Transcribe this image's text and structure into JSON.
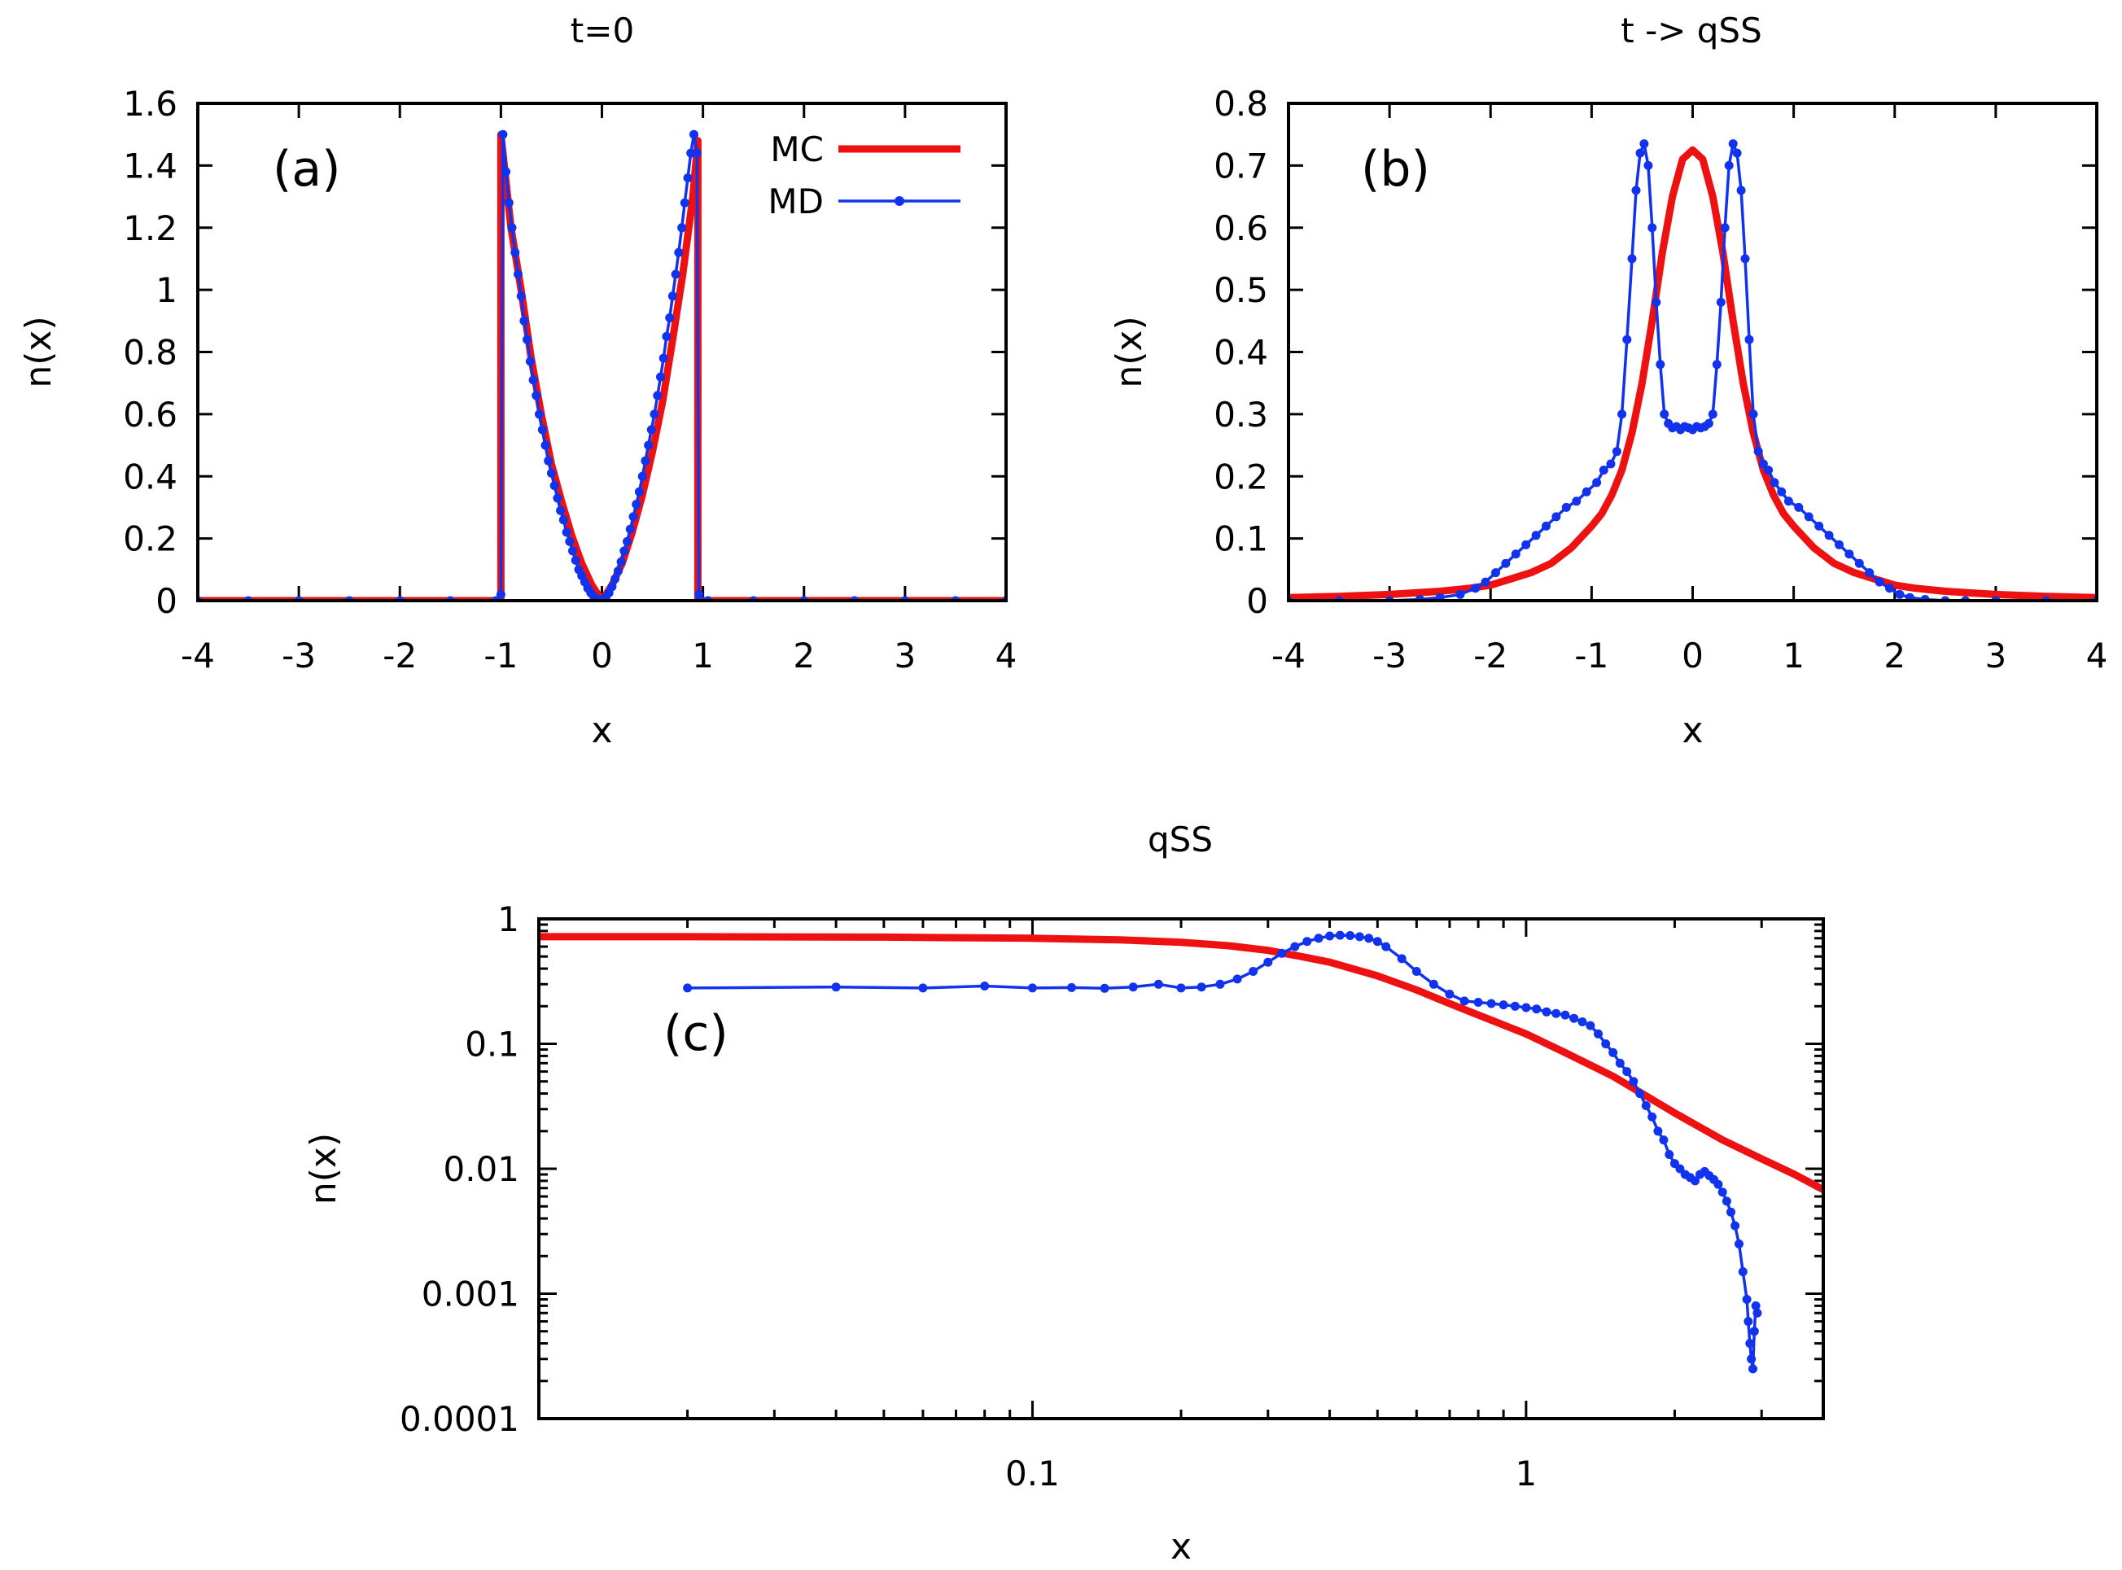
{
  "colors": {
    "mc": "#ee1111",
    "md": "#1133ee",
    "axis": "#000000"
  },
  "chart_data": [
    {
      "type": "line",
      "title": "t=0",
      "panel_label": "(a)",
      "xlabel": "x",
      "ylabel": "n(x)",
      "xscale": "linear",
      "yscale": "linear",
      "xlim": [
        -4,
        4
      ],
      "ylim": [
        0,
        1.6
      ],
      "xticks": [
        -4,
        -3,
        -2,
        -1,
        0,
        1,
        2,
        3,
        4
      ],
      "xtick_labels": [
        "-4",
        "-3",
        "-2",
        "-1",
        "0",
        "1",
        "2",
        "3",
        "4"
      ],
      "yticks": [
        0,
        0.2,
        0.4,
        0.6,
        0.8,
        1,
        1.2,
        1.4,
        1.6
      ],
      "ytick_labels": [
        "0",
        "0.2",
        "0.4",
        "0.6",
        "0.8",
        "1",
        "1.2",
        "1.4",
        "1.6"
      ],
      "legend": {
        "placement": "top-right",
        "entries": [
          "MC",
          "MD"
        ]
      },
      "series": [
        {
          "name": "MC",
          "style": "thick-line",
          "x": [
            -4,
            -1.0,
            -1.0,
            -0.9,
            -0.8,
            -0.7,
            -0.6,
            -0.5,
            -0.4,
            -0.3,
            -0.2,
            -0.1,
            0,
            0.1,
            0.2,
            0.3,
            0.4,
            0.5,
            0.6,
            0.7,
            0.8,
            0.9,
            0.95,
            0.95,
            4
          ],
          "y": [
            0,
            0,
            1.5,
            1.2,
            1.0,
            0.78,
            0.6,
            0.44,
            0.32,
            0.21,
            0.12,
            0.05,
            0.0,
            0.05,
            0.12,
            0.22,
            0.34,
            0.48,
            0.64,
            0.84,
            1.05,
            1.3,
            1.48,
            0,
            0
          ]
        },
        {
          "name": "MD",
          "style": "line-points",
          "x": [
            -4,
            -3.5,
            -3,
            -2.5,
            -2,
            -1.5,
            -1.05,
            -1.0,
            -0.98,
            -0.95,
            -0.92,
            -0.89,
            -0.86,
            -0.83,
            -0.8,
            -0.77,
            -0.74,
            -0.71,
            -0.68,
            -0.65,
            -0.62,
            -0.59,
            -0.56,
            -0.53,
            -0.5,
            -0.47,
            -0.44,
            -0.41,
            -0.38,
            -0.35,
            -0.32,
            -0.29,
            -0.26,
            -0.23,
            -0.2,
            -0.17,
            -0.14,
            -0.11,
            -0.08,
            -0.05,
            -0.02,
            0.01,
            0.04,
            0.07,
            0.1,
            0.13,
            0.16,
            0.19,
            0.22,
            0.25,
            0.28,
            0.31,
            0.34,
            0.37,
            0.4,
            0.43,
            0.46,
            0.49,
            0.52,
            0.55,
            0.58,
            0.61,
            0.64,
            0.67,
            0.7,
            0.73,
            0.76,
            0.79,
            0.82,
            0.85,
            0.88,
            0.91,
            0.94,
            0.96,
            0.97,
            1.05,
            1.5,
            2,
            2.5,
            3,
            3.5,
            4
          ],
          "y": [
            0,
            0,
            0,
            0,
            0,
            0,
            0,
            0.02,
            1.5,
            1.38,
            1.28,
            1.2,
            1.12,
            1.05,
            0.98,
            0.9,
            0.84,
            0.77,
            0.71,
            0.66,
            0.6,
            0.55,
            0.5,
            0.45,
            0.41,
            0.37,
            0.33,
            0.29,
            0.26,
            0.22,
            0.19,
            0.16,
            0.13,
            0.1,
            0.08,
            0.06,
            0.04,
            0.025,
            0.012,
            0.005,
            0.002,
            0.004,
            0.012,
            0.025,
            0.045,
            0.07,
            0.095,
            0.125,
            0.16,
            0.19,
            0.23,
            0.27,
            0.31,
            0.35,
            0.4,
            0.45,
            0.5,
            0.55,
            0.6,
            0.66,
            0.72,
            0.78,
            0.85,
            0.91,
            0.98,
            1.05,
            1.12,
            1.2,
            1.28,
            1.36,
            1.44,
            1.5,
            1.44,
            0.02,
            0,
            0,
            0,
            0,
            0,
            0,
            0,
            0
          ]
        }
      ]
    },
    {
      "type": "line",
      "title": "t -> qSS",
      "panel_label": "(b)",
      "xlabel": "x",
      "ylabel": "n(x)",
      "xscale": "linear",
      "yscale": "linear",
      "xlim": [
        -4,
        4
      ],
      "ylim": [
        0,
        0.8
      ],
      "xticks": [
        -4,
        -3,
        -2,
        -1,
        0,
        1,
        2,
        3,
        4
      ],
      "xtick_labels": [
        "-4",
        "-3",
        "-2",
        "-1",
        "0",
        "1",
        "2",
        "3",
        "4"
      ],
      "yticks": [
        0,
        0.1,
        0.2,
        0.3,
        0.4,
        0.5,
        0.6,
        0.7,
        0.8
      ],
      "ytick_labels": [
        "0",
        "0.1",
        "0.2",
        "0.3",
        "0.4",
        "0.5",
        "0.6",
        "0.7",
        "0.8"
      ],
      "series": [
        {
          "name": "MC",
          "style": "thick-line",
          "x": [
            -4,
            -3.5,
            -3,
            -2.5,
            -2.2,
            -2,
            -1.8,
            -1.6,
            -1.4,
            -1.2,
            -1,
            -0.9,
            -0.8,
            -0.7,
            -0.6,
            -0.5,
            -0.4,
            -0.3,
            -0.2,
            -0.1,
            0,
            0.1,
            0.2,
            0.3,
            0.4,
            0.5,
            0.6,
            0.7,
            0.8,
            0.9,
            1,
            1.2,
            1.4,
            1.6,
            1.8,
            2,
            2.2,
            2.5,
            3,
            3.5,
            4
          ],
          "y": [
            0.005,
            0.007,
            0.01,
            0.015,
            0.02,
            0.025,
            0.035,
            0.045,
            0.06,
            0.085,
            0.12,
            0.14,
            0.17,
            0.21,
            0.27,
            0.35,
            0.45,
            0.56,
            0.65,
            0.71,
            0.725,
            0.71,
            0.65,
            0.56,
            0.45,
            0.35,
            0.27,
            0.21,
            0.17,
            0.14,
            0.12,
            0.085,
            0.06,
            0.045,
            0.035,
            0.025,
            0.02,
            0.015,
            0.01,
            0.007,
            0.005
          ]
        },
        {
          "name": "MD",
          "style": "line-points",
          "x": [
            -4,
            -3.5,
            -3,
            -2.7,
            -2.5,
            -2.3,
            -2.15,
            -2.05,
            -1.95,
            -1.85,
            -1.75,
            -1.65,
            -1.55,
            -1.45,
            -1.35,
            -1.25,
            -1.15,
            -1.05,
            -0.95,
            -0.88,
            -0.81,
            -0.75,
            -0.7,
            -0.65,
            -0.6,
            -0.56,
            -0.52,
            -0.48,
            -0.44,
            -0.4,
            -0.36,
            -0.32,
            -0.28,
            -0.24,
            -0.2,
            -0.16,
            -0.12,
            -0.08,
            -0.04,
            0,
            0.04,
            0.08,
            0.12,
            0.16,
            0.2,
            0.24,
            0.28,
            0.32,
            0.36,
            0.4,
            0.44,
            0.48,
            0.52,
            0.56,
            0.6,
            0.65,
            0.7,
            0.75,
            0.81,
            0.88,
            0.95,
            1.05,
            1.15,
            1.25,
            1.35,
            1.45,
            1.55,
            1.65,
            1.75,
            1.85,
            1.95,
            2.05,
            2.15,
            2.3,
            2.5,
            2.7,
            3,
            3.5,
            4
          ],
          "y": [
            0,
            0,
            0,
            0.002,
            0.005,
            0.01,
            0.02,
            0.03,
            0.045,
            0.06,
            0.075,
            0.09,
            0.105,
            0.12,
            0.135,
            0.15,
            0.16,
            0.175,
            0.19,
            0.21,
            0.22,
            0.24,
            0.3,
            0.42,
            0.55,
            0.66,
            0.72,
            0.735,
            0.7,
            0.6,
            0.48,
            0.38,
            0.3,
            0.285,
            0.278,
            0.28,
            0.275,
            0.28,
            0.278,
            0.275,
            0.28,
            0.278,
            0.28,
            0.285,
            0.3,
            0.38,
            0.48,
            0.6,
            0.7,
            0.735,
            0.72,
            0.66,
            0.55,
            0.42,
            0.3,
            0.24,
            0.22,
            0.21,
            0.19,
            0.175,
            0.16,
            0.15,
            0.135,
            0.12,
            0.105,
            0.09,
            0.075,
            0.06,
            0.045,
            0.03,
            0.02,
            0.01,
            0.005,
            0.002,
            0,
            0,
            0,
            0,
            0
          ]
        }
      ]
    },
    {
      "type": "line",
      "title": "qSS",
      "panel_label": "(c)",
      "xlabel": "x",
      "ylabel": "n(x)",
      "xscale": "log",
      "yscale": "log",
      "xlim": [
        0.01,
        4
      ],
      "ylim": [
        0.0001,
        1
      ],
      "xticks": [
        0.1,
        1
      ],
      "xtick_labels": [
        "0.1",
        "1"
      ],
      "yticks": [
        0.0001,
        0.001,
        0.01,
        0.1,
        1
      ],
      "ytick_labels": [
        "0.0001",
        "0.001",
        "0.01",
        "0.1",
        "1"
      ],
      "series": [
        {
          "name": "MC",
          "style": "thick-line",
          "x": [
            0.01,
            0.02,
            0.05,
            0.1,
            0.15,
            0.2,
            0.25,
            0.3,
            0.35,
            0.4,
            0.5,
            0.6,
            0.7,
            0.8,
            1.0,
            1.2,
            1.5,
            2.0,
            2.5,
            3.0,
            3.5,
            4.0
          ],
          "y": [
            0.72,
            0.72,
            0.715,
            0.7,
            0.68,
            0.65,
            0.61,
            0.56,
            0.5,
            0.45,
            0.35,
            0.27,
            0.21,
            0.17,
            0.12,
            0.085,
            0.055,
            0.028,
            0.017,
            0.012,
            0.009,
            0.0068
          ]
        },
        {
          "name": "MD",
          "style": "line-points",
          "x": [
            0.02,
            0.04,
            0.06,
            0.08,
            0.1,
            0.12,
            0.14,
            0.16,
            0.18,
            0.2,
            0.22,
            0.24,
            0.26,
            0.28,
            0.3,
            0.32,
            0.34,
            0.36,
            0.38,
            0.4,
            0.42,
            0.44,
            0.46,
            0.48,
            0.5,
            0.52,
            0.56,
            0.6,
            0.65,
            0.7,
            0.75,
            0.8,
            0.85,
            0.9,
            0.95,
            1.0,
            1.05,
            1.1,
            1.15,
            1.2,
            1.25,
            1.3,
            1.35,
            1.4,
            1.45,
            1.5,
            1.55,
            1.6,
            1.65,
            1.7,
            1.75,
            1.8,
            1.85,
            1.9,
            1.95,
            2.0,
            2.05,
            2.1,
            2.15,
            2.2,
            2.25,
            2.3,
            2.35,
            2.4,
            2.45,
            2.5,
            2.55,
            2.6,
            2.65,
            2.7,
            2.75,
            2.8,
            2.82,
            2.84,
            2.86,
            2.88,
            2.9,
            2.92,
            2.94
          ],
          "y": [
            0.28,
            0.285,
            0.28,
            0.29,
            0.28,
            0.282,
            0.278,
            0.285,
            0.3,
            0.28,
            0.285,
            0.3,
            0.33,
            0.38,
            0.45,
            0.53,
            0.6,
            0.66,
            0.7,
            0.73,
            0.74,
            0.735,
            0.72,
            0.7,
            0.66,
            0.6,
            0.48,
            0.38,
            0.3,
            0.25,
            0.22,
            0.215,
            0.21,
            0.205,
            0.2,
            0.195,
            0.19,
            0.18,
            0.175,
            0.17,
            0.16,
            0.15,
            0.14,
            0.12,
            0.1,
            0.085,
            0.07,
            0.06,
            0.05,
            0.04,
            0.032,
            0.026,
            0.02,
            0.017,
            0.013,
            0.011,
            0.01,
            0.009,
            0.0085,
            0.008,
            0.009,
            0.0095,
            0.0088,
            0.0082,
            0.0075,
            0.0065,
            0.0055,
            0.0045,
            0.0035,
            0.0025,
            0.0015,
            0.0009,
            0.0006,
            0.0004,
            0.0003,
            0.00025,
            0.0005,
            0.0008,
            0.0007
          ]
        }
      ]
    }
  ]
}
